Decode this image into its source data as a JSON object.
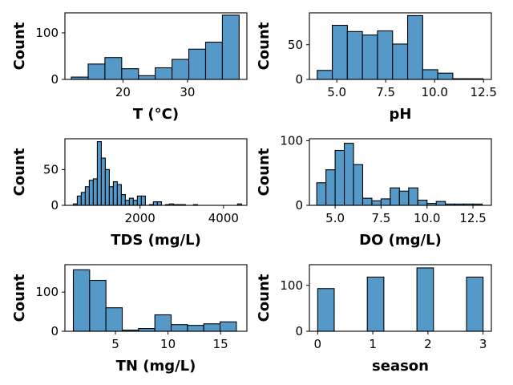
{
  "chart_data": [
    {
      "type": "bar",
      "subtype": "histogram",
      "xlabel": "T  (°C)",
      "ylabel": "Count",
      "xlim": [
        11,
        39.2
      ],
      "ylim": [
        0,
        143
      ],
      "xticks": [
        20,
        30
      ],
      "xtick_labels": [
        "20",
        "30"
      ],
      "yticks": [
        0,
        100
      ],
      "ytick_labels": [
        "0",
        "100"
      ],
      "bins": [
        {
          "x0": 12.0,
          "x1": 14.6,
          "count": 5
        },
        {
          "x0": 14.6,
          "x1": 17.2,
          "count": 33
        },
        {
          "x0": 17.2,
          "x1": 19.8,
          "count": 47
        },
        {
          "x0": 19.8,
          "x1": 22.4,
          "count": 23
        },
        {
          "x0": 22.4,
          "x1": 25.0,
          "count": 8
        },
        {
          "x0": 25.0,
          "x1": 27.6,
          "count": 25
        },
        {
          "x0": 27.6,
          "x1": 30.2,
          "count": 43
        },
        {
          "x0": 30.2,
          "x1": 32.8,
          "count": 65
        },
        {
          "x0": 32.8,
          "x1": 35.4,
          "count": 80
        },
        {
          "x0": 35.4,
          "x1": 38.0,
          "count": 138
        }
      ]
    },
    {
      "type": "bar",
      "subtype": "histogram",
      "xlabel": "pH",
      "ylabel": "Count",
      "xlim": [
        3.6,
        12.9
      ],
      "ylim": [
        0,
        96
      ],
      "xticks": [
        5.0,
        7.5,
        10.0,
        12.5
      ],
      "xtick_labels": [
        "5.0",
        "7.5",
        "10.0",
        "12.5"
      ],
      "yticks": [
        0,
        50
      ],
      "ytick_labels": [
        "0",
        "50"
      ],
      "bins": [
        {
          "x0": 4.0,
          "x1": 4.77,
          "count": 13
        },
        {
          "x0": 4.77,
          "x1": 5.54,
          "count": 78
        },
        {
          "x0": 5.54,
          "x1": 6.31,
          "count": 69
        },
        {
          "x0": 6.31,
          "x1": 7.08,
          "count": 64
        },
        {
          "x0": 7.08,
          "x1": 7.85,
          "count": 70
        },
        {
          "x0": 7.85,
          "x1": 8.62,
          "count": 51
        },
        {
          "x0": 8.62,
          "x1": 9.39,
          "count": 92
        },
        {
          "x0": 9.39,
          "x1": 10.16,
          "count": 14
        },
        {
          "x0": 10.16,
          "x1": 10.93,
          "count": 9
        },
        {
          "x0": 10.93,
          "x1": 11.7,
          "count": 1
        },
        {
          "x0": 11.7,
          "x1": 12.47,
          "count": 1
        }
      ]
    },
    {
      "type": "bar",
      "subtype": "histogram",
      "xlabel": "TDS (mg/L)",
      "ylabel": "Count",
      "xlim": [
        200,
        4560
      ],
      "ylim": [
        0,
        93
      ],
      "xticks": [
        2000,
        4000
      ],
      "xtick_labels": [
        "2000",
        "4000"
      ],
      "yticks": [
        0,
        50
      ],
      "ytick_labels": [
        "0",
        "50"
      ],
      "bin_width": 96,
      "bin_start": 400,
      "counts": [
        2,
        13,
        18,
        26,
        35,
        37,
        89,
        66,
        50,
        26,
        33,
        29,
        15,
        7,
        10,
        7,
        13,
        13,
        0,
        1,
        5,
        5,
        0,
        1,
        2,
        1,
        1,
        1,
        0,
        0,
        1,
        0,
        0,
        0,
        0,
        0,
        0,
        0,
        0,
        0,
        0,
        2
      ]
    },
    {
      "type": "bar",
      "subtype": "histogram",
      "xlabel": "DO (mg/L)",
      "ylabel": "Count",
      "xlim": [
        3.6,
        13.5
      ],
      "ylim": [
        0,
        103
      ],
      "xticks": [
        5.0,
        7.5,
        10.0,
        12.5
      ],
      "xtick_labels": [
        "5.0",
        "7.5",
        "10.0",
        "12.5"
      ],
      "yticks": [
        0,
        100
      ],
      "ytick_labels": [
        "0",
        "100"
      ],
      "bin_width": 0.5,
      "bin_start": 4.0,
      "counts": [
        35,
        55,
        85,
        96,
        63,
        11,
        7,
        10,
        27,
        22,
        27,
        8,
        3,
        6,
        2,
        2,
        2,
        2
      ]
    },
    {
      "type": "bar",
      "subtype": "histogram",
      "xlabel": "TN (mg/L)",
      "ylabel": "Count",
      "xlim": [
        0.2,
        17.5
      ],
      "ylim": [
        0,
        170
      ],
      "xticks": [
        5,
        10,
        15
      ],
      "xtick_labels": [
        "5",
        "10",
        "15"
      ],
      "yticks": [
        0,
        100
      ],
      "ytick_labels": [
        "0",
        "100"
      ],
      "bin_width": 1.55,
      "bin_start": 1.0,
      "counts": [
        157,
        130,
        60,
        3,
        7,
        42,
        17,
        15,
        19,
        24
      ]
    },
    {
      "type": "bar",
      "subtype": "histogram",
      "xlabel": "season",
      "ylabel": "Count",
      "xlim": [
        -0.15,
        3.15
      ],
      "ylim": [
        0,
        145
      ],
      "xticks": [
        0,
        1,
        2,
        3
      ],
      "xtick_labels": [
        "0",
        "1",
        "2",
        "3"
      ],
      "yticks": [
        0,
        100
      ],
      "ytick_labels": [
        "0",
        "100"
      ],
      "bins": [
        {
          "x0": 0.0,
          "x1": 0.3,
          "count": 93
        },
        {
          "x0": 0.3,
          "x1": 0.6,
          "count": 0
        },
        {
          "x0": 0.6,
          "x1": 0.9,
          "count": 0
        },
        {
          "x0": 0.9,
          "x1": 1.2,
          "count": 118
        },
        {
          "x0": 1.2,
          "x1": 1.5,
          "count": 0
        },
        {
          "x0": 1.5,
          "x1": 1.8,
          "count": 0
        },
        {
          "x0": 1.8,
          "x1": 2.1,
          "count": 138
        },
        {
          "x0": 2.1,
          "x1": 2.4,
          "count": 0
        },
        {
          "x0": 2.4,
          "x1": 2.7,
          "count": 0
        },
        {
          "x0": 2.7,
          "x1": 3.0,
          "count": 118
        }
      ]
    }
  ]
}
